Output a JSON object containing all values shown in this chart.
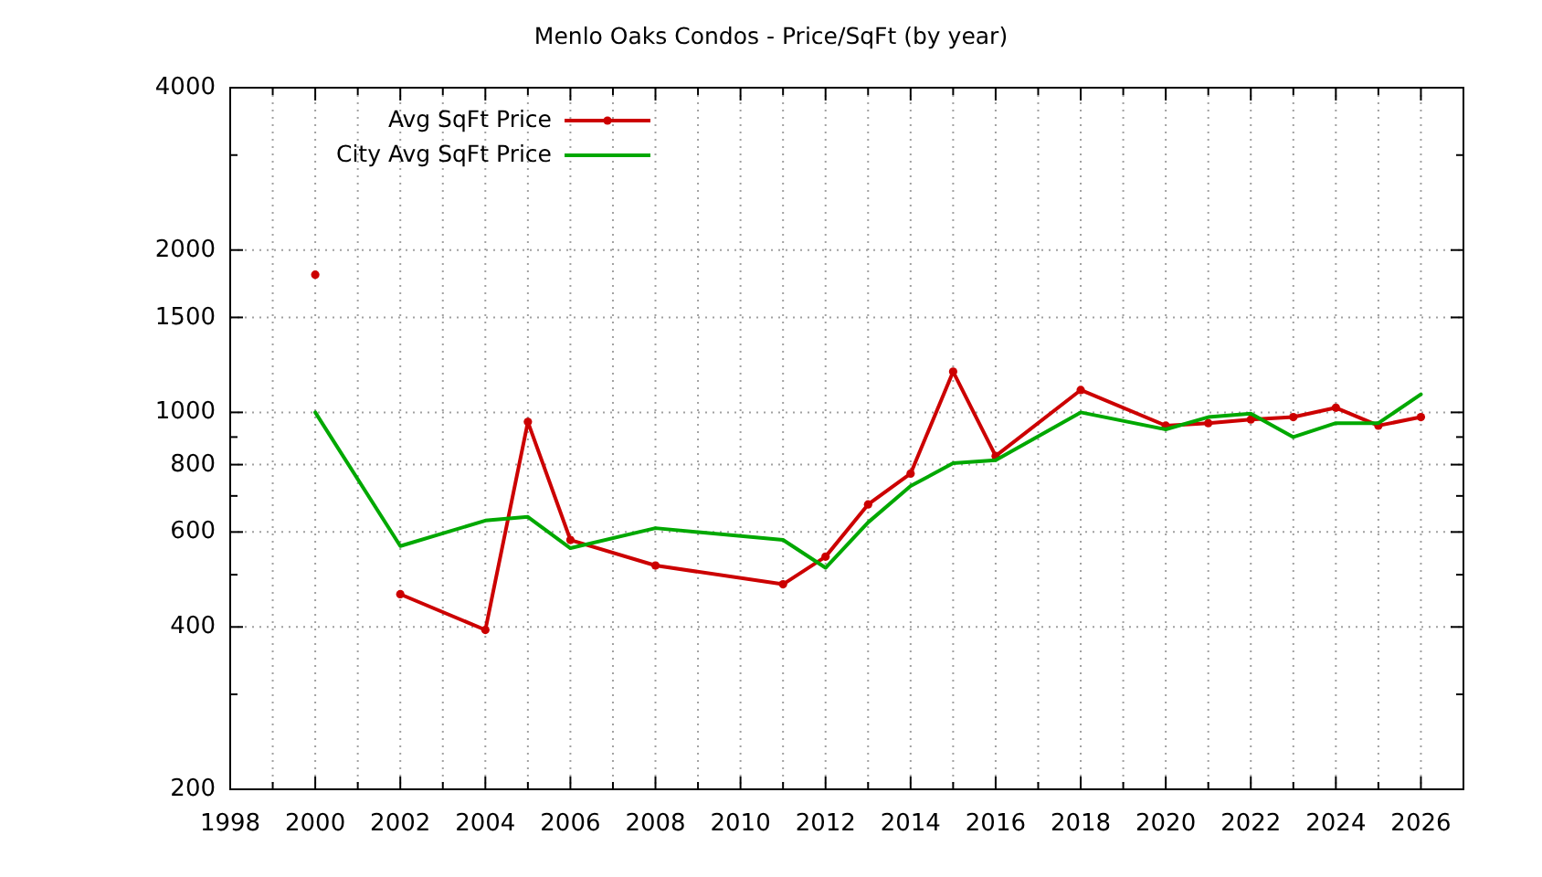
{
  "chart_data": {
    "type": "line",
    "title": "Menlo Oaks Condos - Price/SqFt (by year)",
    "xlim": [
      1998,
      2027
    ],
    "xticks": [
      1998,
      {
        "value": 1999,
        "label": null
      },
      2000,
      {
        "value": 2001,
        "label": null
      },
      2002,
      {
        "value": 2003,
        "label": null
      },
      2004,
      {
        "value": 2005,
        "label": null
      },
      2006,
      {
        "value": 2007,
        "label": null
      },
      2008,
      {
        "value": 2009,
        "label": null
      },
      2010,
      {
        "value": 2011,
        "label": null
      },
      2012,
      {
        "value": 2013,
        "label": null
      },
      2014,
      {
        "value": 2015,
        "label": null
      },
      2016,
      {
        "value": 2017,
        "label": null
      },
      2018,
      {
        "value": 2019,
        "label": null
      },
      2020,
      {
        "value": 2021,
        "label": null
      },
      2022,
      {
        "value": 2023,
        "label": null
      },
      2024,
      {
        "value": 2025,
        "label": null
      },
      2026
    ],
    "ylim": [
      200,
      4000
    ],
    "yticks": [
      200,
      {
        "value": 300,
        "label": null
      },
      400,
      {
        "value": 500,
        "label": null
      },
      600,
      {
        "value": 700,
        "label": null
      },
      800,
      {
        "value": 900,
        "label": null
      },
      1000,
      1500,
      2000,
      {
        "value": 3000,
        "label": null
      },
      4000
    ],
    "log": "y",
    "grid": true,
    "legend": "top left",
    "series": [
      {
        "name": "Avg SqFt Price",
        "color": "#cc0000",
        "marker": "circle",
        "x": [
          2000,
          2001,
          2002,
          2004,
          2005,
          2006,
          2008,
          2011,
          2012,
          2013,
          2014,
          2015,
          2016,
          2018,
          2020,
          2021,
          2022,
          2023,
          2024,
          2025,
          2026
        ],
        "values": [
          1800,
          null,
          460,
          395,
          960,
          580,
          520,
          480,
          540,
          675,
          770,
          1190,
          830,
          1100,
          945,
          955,
          970,
          980,
          1020,
          945,
          980
        ]
      },
      {
        "name": "City Avg SqFt Price",
        "color": "#00a800",
        "marker": "none",
        "x": [
          2000,
          2002,
          2004,
          2005,
          2006,
          2008,
          2011,
          2012,
          2013,
          2014,
          2015,
          2016,
          2018,
          2020,
          2021,
          2022,
          2023,
          2024,
          2025,
          2026
        ],
        "values": [
          1000,
          565,
          630,
          640,
          560,
          610,
          580,
          515,
          625,
          730,
          805,
          815,
          1000,
          930,
          980,
          995,
          900,
          955,
          955,
          1080
        ]
      }
    ]
  }
}
